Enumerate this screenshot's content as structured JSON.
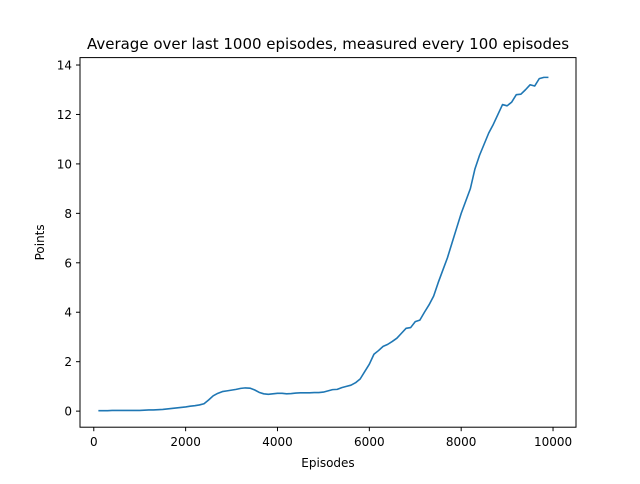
{
  "chart_data": {
    "type": "line",
    "title": "Average over last 1000 episodes, measured every 100 episodes",
    "xlabel": "Episodes",
    "ylabel": "Points",
    "xlim": [
      -300,
      10500
    ],
    "ylim": [
      -0.65,
      14.3
    ],
    "xticks": [
      0,
      2000,
      4000,
      6000,
      8000,
      10000
    ],
    "yticks": [
      0,
      2,
      4,
      6,
      8,
      10,
      12,
      14
    ],
    "grid": false,
    "line_color": "#1f77b4",
    "series": [
      {
        "x": [
          100,
          200,
          300,
          400,
          500,
          600,
          700,
          800,
          900,
          1000,
          1100,
          1200,
          1300,
          1400,
          1500,
          1600,
          1700,
          1800,
          1900,
          2000,
          2100,
          2200,
          2300,
          2400,
          2500,
          2600,
          2700,
          2800,
          2900,
          3000,
          3100,
          3200,
          3300,
          3400,
          3500,
          3600,
          3700,
          3800,
          3900,
          4000,
          4100,
          4200,
          4300,
          4400,
          4500,
          4600,
          4700,
          4800,
          4900,
          5000,
          5100,
          5200,
          5300,
          5400,
          5500,
          5600,
          5700,
          5800,
          5900,
          6000,
          6100,
          6200,
          6300,
          6400,
          6500,
          6600,
          6700,
          6800,
          6900,
          7000,
          7100,
          7200,
          7300,
          7400,
          7500,
          7600,
          7700,
          7800,
          7900,
          8000,
          8100,
          8200,
          8300,
          8400,
          8500,
          8600,
          8700,
          8800,
          8900,
          9000,
          9100,
          9200,
          9300,
          9400,
          9500,
          9600,
          9700,
          9800,
          9900
        ],
        "y": [
          0.02,
          0.02,
          0.02,
          0.03,
          0.03,
          0.03,
          0.03,
          0.03,
          0.03,
          0.03,
          0.04,
          0.05,
          0.05,
          0.06,
          0.07,
          0.09,
          0.11,
          0.13,
          0.15,
          0.17,
          0.2,
          0.22,
          0.25,
          0.3,
          0.45,
          0.62,
          0.72,
          0.79,
          0.82,
          0.85,
          0.88,
          0.92,
          0.94,
          0.93,
          0.86,
          0.76,
          0.7,
          0.68,
          0.7,
          0.72,
          0.72,
          0.7,
          0.71,
          0.73,
          0.74,
          0.74,
          0.74,
          0.75,
          0.75,
          0.77,
          0.82,
          0.87,
          0.88,
          0.95,
          1.0,
          1.05,
          1.15,
          1.3,
          1.6,
          1.9,
          2.3,
          2.45,
          2.62,
          2.7,
          2.82,
          2.95,
          3.15,
          3.35,
          3.38,
          3.62,
          3.68,
          4.0,
          4.3,
          4.65,
          5.2,
          5.7,
          6.2,
          6.8,
          7.4,
          8.0,
          8.5,
          9.0,
          9.8,
          10.35,
          10.8,
          11.25,
          11.6,
          12.0,
          12.4,
          12.35,
          12.5,
          12.8,
          12.82,
          13.0,
          13.2,
          13.15,
          13.45,
          13.5,
          13.5
        ]
      }
    ]
  }
}
